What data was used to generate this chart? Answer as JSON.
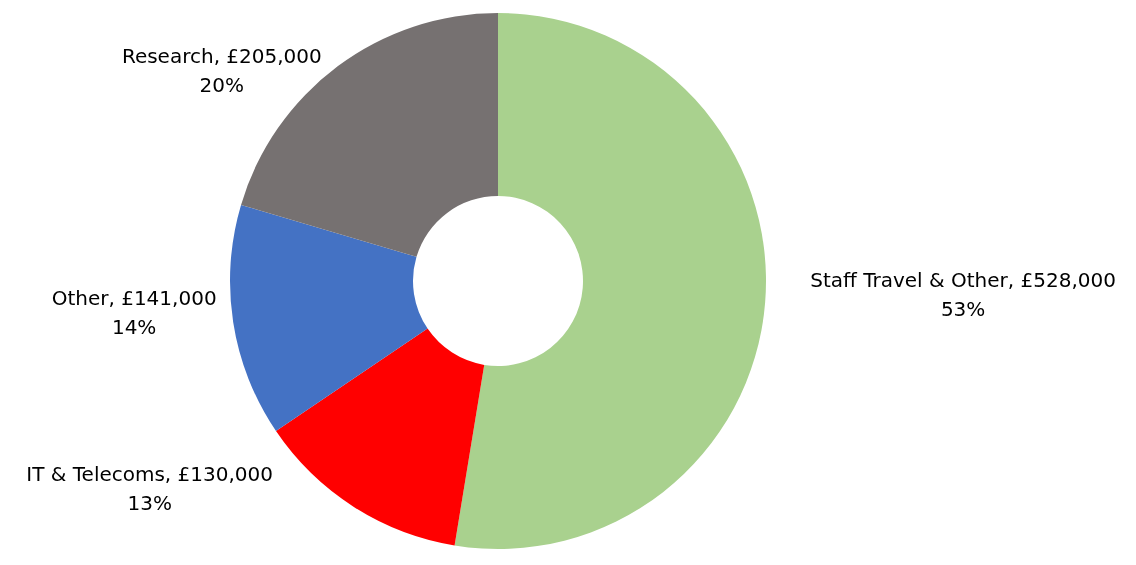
{
  "chart_data": {
    "type": "donut",
    "categories": [
      "Staff Travel & Other",
      "IT & Telecoms",
      "Other",
      "Research"
    ],
    "values": [
      528000,
      130000,
      141000,
      205000
    ],
    "colors": [
      "#a9d18e",
      "#ff0000",
      "#4472c4",
      "#767171"
    ],
    "value_labels": [
      "£528,000\n53%",
      "£130,000\n13%",
      "£141,000\n14%",
      "£205,000\n20%"
    ]
  }
}
